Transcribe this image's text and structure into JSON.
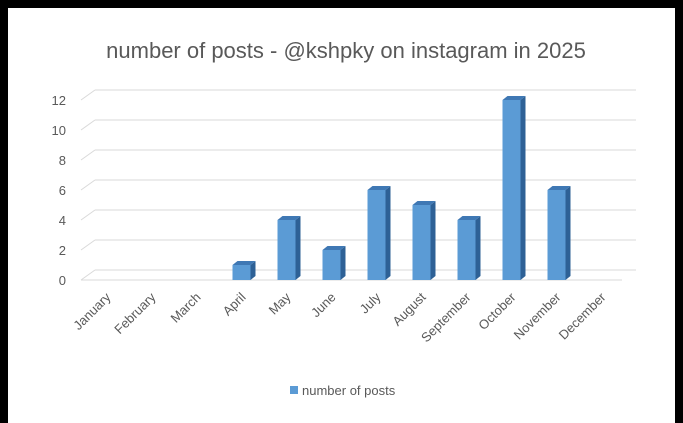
{
  "chart_data": {
    "type": "bar",
    "title": "number of posts - @kshpky on instagram in 2025",
    "categories": [
      "January",
      "February",
      "March",
      "April",
      "May",
      "June",
      "July",
      "August",
      "September",
      "October",
      "November",
      "December"
    ],
    "series": [
      {
        "name": "number of posts",
        "values": [
          0,
          0,
          0,
          1,
          4,
          2,
          6,
          5,
          4,
          12,
          6,
          0
        ],
        "color": "#5b9bd5"
      }
    ],
    "yticks": [
      0,
      2,
      4,
      6,
      8,
      10,
      12
    ],
    "ylim": [
      0,
      12
    ],
    "grid": true,
    "legend_position": "bottom",
    "three_d": true
  }
}
